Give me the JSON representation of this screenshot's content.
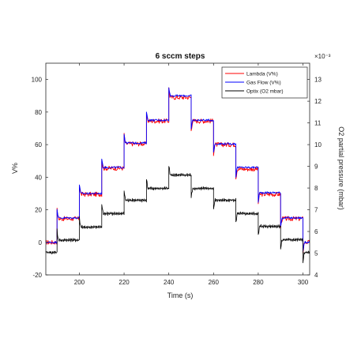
{
  "chart_data": {
    "type": "line",
    "title": "6 sccm steps",
    "xlabel": "Time (s)",
    "ylabel": "V%",
    "y2label": "O2 partial pressure (mbar)",
    "y2_multiplier": "×10⁻³",
    "xlim": [
      185,
      303
    ],
    "ylim": [
      -20,
      110
    ],
    "y2lim": [
      4,
      13.75
    ],
    "xticks": [
      200,
      220,
      240,
      260,
      280,
      300
    ],
    "yticks": [
      -20,
      0,
      20,
      40,
      60,
      80,
      100
    ],
    "y2ticks": [
      4,
      5,
      6,
      7,
      8,
      9,
      10,
      11,
      12,
      13
    ],
    "grid": false,
    "legend_position": "top-right",
    "series": [
      {
        "name": "Lambda (V%)",
        "color": "#ff0000",
        "axis": "left",
        "steps": [
          {
            "t_start": 185,
            "t_end": 190,
            "value": 0
          },
          {
            "t_start": 190,
            "t_end": 200,
            "value": 14.5
          },
          {
            "t_start": 200,
            "t_end": 210,
            "value": 29.5
          },
          {
            "t_start": 210,
            "t_end": 220,
            "value": 45.5
          },
          {
            "t_start": 220,
            "t_end": 230,
            "value": 60.5
          },
          {
            "t_start": 230,
            "t_end": 240,
            "value": 74.5
          },
          {
            "t_start": 240,
            "t_end": 250,
            "value": 89
          },
          {
            "t_start": 250,
            "t_end": 260,
            "value": 74.5
          },
          {
            "t_start": 260,
            "t_end": 270,
            "value": 60
          },
          {
            "t_start": 270,
            "t_end": 280,
            "value": 45
          },
          {
            "t_start": 280,
            "t_end": 290,
            "value": 29.5
          },
          {
            "t_start": 290,
            "t_end": 300,
            "value": 14.5
          },
          {
            "t_start": 300,
            "t_end": 303,
            "value": 0
          }
        ]
      },
      {
        "name": "Gas Flow (V%)",
        "color": "#0000ff",
        "axis": "left",
        "steps": [
          {
            "t_start": 185,
            "t_end": 190,
            "value": 0
          },
          {
            "t_start": 190,
            "t_end": 200,
            "value": 15
          },
          {
            "t_start": 200,
            "t_end": 210,
            "value": 30
          },
          {
            "t_start": 210,
            "t_end": 220,
            "value": 46
          },
          {
            "t_start": 220,
            "t_end": 230,
            "value": 61
          },
          {
            "t_start": 230,
            "t_end": 240,
            "value": 75
          },
          {
            "t_start": 240,
            "t_end": 250,
            "value": 90
          },
          {
            "t_start": 250,
            "t_end": 260,
            "value": 75
          },
          {
            "t_start": 260,
            "t_end": 270,
            "value": 60.5
          },
          {
            "t_start": 270,
            "t_end": 280,
            "value": 46
          },
          {
            "t_start": 280,
            "t_end": 290,
            "value": 30.5
          },
          {
            "t_start": 290,
            "t_end": 300,
            "value": 15
          },
          {
            "t_start": 300,
            "t_end": 303,
            "value": 0
          }
        ]
      },
      {
        "name": "Optix (O2 mbar)",
        "color": "#000000",
        "axis": "right",
        "steps": [
          {
            "t_start": 185,
            "t_end": 190,
            "value": 5.03
          },
          {
            "t_start": 190,
            "t_end": 200,
            "value": 5.6
          },
          {
            "t_start": 200,
            "t_end": 210,
            "value": 6.2
          },
          {
            "t_start": 210,
            "t_end": 220,
            "value": 6.82
          },
          {
            "t_start": 220,
            "t_end": 230,
            "value": 7.44
          },
          {
            "t_start": 230,
            "t_end": 240,
            "value": 7.98
          },
          {
            "t_start": 240,
            "t_end": 250,
            "value": 8.6
          },
          {
            "t_start": 250,
            "t_end": 260,
            "value": 7.98
          },
          {
            "t_start": 260,
            "t_end": 270,
            "value": 7.44
          },
          {
            "t_start": 270,
            "t_end": 280,
            "value": 6.82
          },
          {
            "t_start": 280,
            "t_end": 290,
            "value": 6.24
          },
          {
            "t_start": 290,
            "t_end": 300,
            "value": 5.62
          },
          {
            "t_start": 300,
            "t_end": 303,
            "value": 5.03
          }
        ]
      }
    ]
  }
}
